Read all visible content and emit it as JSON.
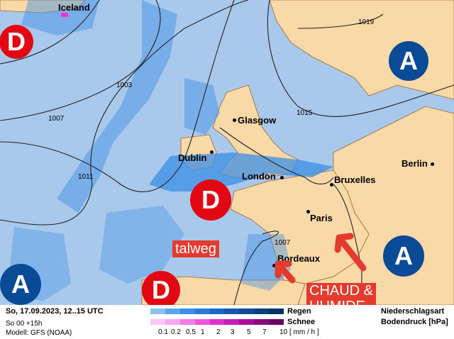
{
  "cities": [
    {
      "name": "Iceland"
    },
    {
      "name": "Glasgow"
    },
    {
      "name": "Dublin"
    },
    {
      "name": "London"
    },
    {
      "name": "Bruxelles"
    },
    {
      "name": "Berlin"
    },
    {
      "name": "Paris"
    },
    {
      "name": "Bordeaux"
    }
  ],
  "pressure_systems": {
    "low": "D",
    "high": "A"
  },
  "isobars": [
    "1003",
    "1007",
    "1011",
    "1015",
    "1019",
    "1007"
  ],
  "annotations": {
    "talweg": "talweg",
    "warm_line1": "CHAUD &",
    "warm_line2": "HUMIDE"
  },
  "legend": {
    "date": "So, 17.09.2023, 12..15 UTC",
    "run": "So 00 +15h",
    "model": "Modell: GFS (NOAA)",
    "rain": "Regen",
    "snow": "Schnee",
    "unit": "[ mm / h ]",
    "type_label": "Niederschlagsart",
    "pressure_label": "Bodendruck [hPa]",
    "scale": [
      "0.1",
      "0.2",
      "0.5",
      "1",
      "2",
      "3",
      "5",
      "7",
      "10"
    ],
    "rain_colors": [
      "#8ec1f2",
      "#5aa6ee",
      "#3a8fe6",
      "#2a7ad8",
      "#1a68c6",
      "#1458ad",
      "#0f4a94",
      "#0c3d7c",
      "#0a3265"
    ],
    "snow_colors": [
      "#fbc8f4",
      "#f7a8ef",
      "#f37ce6",
      "#ec55dc",
      "#e12fcf",
      "#c81cb8",
      "#a50f9a",
      "#86097d",
      "#6b0564"
    ]
  },
  "colors": {
    "sea": "#a8c8ec",
    "land": "#fad9a8",
    "low": "#e30613",
    "high": "#0a4b97",
    "annotation": "#e53b2f"
  }
}
